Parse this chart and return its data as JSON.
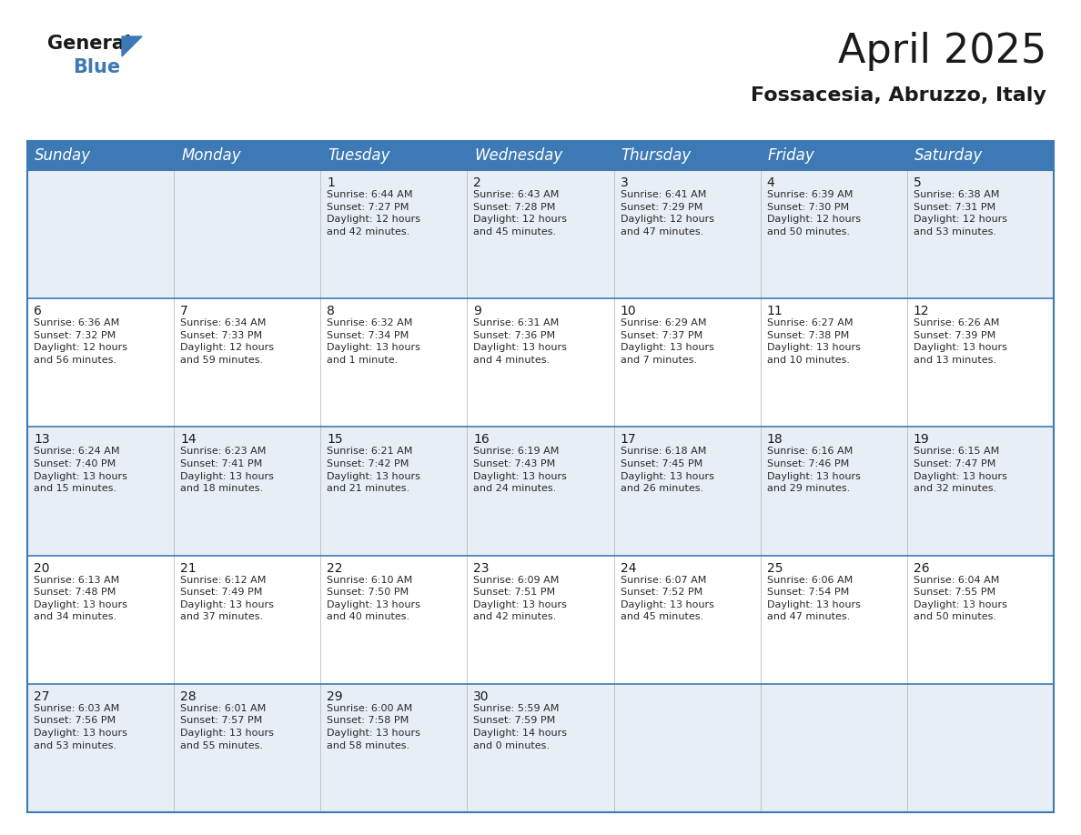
{
  "title": "April 2025",
  "subtitle": "Fossacesia, Abruzzo, Italy",
  "header_bg_color": "#3d7ab5",
  "header_text_color": "#ffffff",
  "days_of_week": [
    "Sunday",
    "Monday",
    "Tuesday",
    "Wednesday",
    "Thursday",
    "Friday",
    "Saturday"
  ],
  "cell_bg_light": "#e8eef5",
  "cell_bg_white": "#ffffff",
  "cell_border_color": "#3d7ab5",
  "calendar_data": [
    [
      {
        "day": "",
        "text": ""
      },
      {
        "day": "",
        "text": ""
      },
      {
        "day": "1",
        "text": "Sunrise: 6:44 AM\nSunset: 7:27 PM\nDaylight: 12 hours\nand 42 minutes."
      },
      {
        "day": "2",
        "text": "Sunrise: 6:43 AM\nSunset: 7:28 PM\nDaylight: 12 hours\nand 45 minutes."
      },
      {
        "day": "3",
        "text": "Sunrise: 6:41 AM\nSunset: 7:29 PM\nDaylight: 12 hours\nand 47 minutes."
      },
      {
        "day": "4",
        "text": "Sunrise: 6:39 AM\nSunset: 7:30 PM\nDaylight: 12 hours\nand 50 minutes."
      },
      {
        "day": "5",
        "text": "Sunrise: 6:38 AM\nSunset: 7:31 PM\nDaylight: 12 hours\nand 53 minutes."
      }
    ],
    [
      {
        "day": "6",
        "text": "Sunrise: 6:36 AM\nSunset: 7:32 PM\nDaylight: 12 hours\nand 56 minutes."
      },
      {
        "day": "7",
        "text": "Sunrise: 6:34 AM\nSunset: 7:33 PM\nDaylight: 12 hours\nand 59 minutes."
      },
      {
        "day": "8",
        "text": "Sunrise: 6:32 AM\nSunset: 7:34 PM\nDaylight: 13 hours\nand 1 minute."
      },
      {
        "day": "9",
        "text": "Sunrise: 6:31 AM\nSunset: 7:36 PM\nDaylight: 13 hours\nand 4 minutes."
      },
      {
        "day": "10",
        "text": "Sunrise: 6:29 AM\nSunset: 7:37 PM\nDaylight: 13 hours\nand 7 minutes."
      },
      {
        "day": "11",
        "text": "Sunrise: 6:27 AM\nSunset: 7:38 PM\nDaylight: 13 hours\nand 10 minutes."
      },
      {
        "day": "12",
        "text": "Sunrise: 6:26 AM\nSunset: 7:39 PM\nDaylight: 13 hours\nand 13 minutes."
      }
    ],
    [
      {
        "day": "13",
        "text": "Sunrise: 6:24 AM\nSunset: 7:40 PM\nDaylight: 13 hours\nand 15 minutes."
      },
      {
        "day": "14",
        "text": "Sunrise: 6:23 AM\nSunset: 7:41 PM\nDaylight: 13 hours\nand 18 minutes."
      },
      {
        "day": "15",
        "text": "Sunrise: 6:21 AM\nSunset: 7:42 PM\nDaylight: 13 hours\nand 21 minutes."
      },
      {
        "day": "16",
        "text": "Sunrise: 6:19 AM\nSunset: 7:43 PM\nDaylight: 13 hours\nand 24 minutes."
      },
      {
        "day": "17",
        "text": "Sunrise: 6:18 AM\nSunset: 7:45 PM\nDaylight: 13 hours\nand 26 minutes."
      },
      {
        "day": "18",
        "text": "Sunrise: 6:16 AM\nSunset: 7:46 PM\nDaylight: 13 hours\nand 29 minutes."
      },
      {
        "day": "19",
        "text": "Sunrise: 6:15 AM\nSunset: 7:47 PM\nDaylight: 13 hours\nand 32 minutes."
      }
    ],
    [
      {
        "day": "20",
        "text": "Sunrise: 6:13 AM\nSunset: 7:48 PM\nDaylight: 13 hours\nand 34 minutes."
      },
      {
        "day": "21",
        "text": "Sunrise: 6:12 AM\nSunset: 7:49 PM\nDaylight: 13 hours\nand 37 minutes."
      },
      {
        "day": "22",
        "text": "Sunrise: 6:10 AM\nSunset: 7:50 PM\nDaylight: 13 hours\nand 40 minutes."
      },
      {
        "day": "23",
        "text": "Sunrise: 6:09 AM\nSunset: 7:51 PM\nDaylight: 13 hours\nand 42 minutes."
      },
      {
        "day": "24",
        "text": "Sunrise: 6:07 AM\nSunset: 7:52 PM\nDaylight: 13 hours\nand 45 minutes."
      },
      {
        "day": "25",
        "text": "Sunrise: 6:06 AM\nSunset: 7:54 PM\nDaylight: 13 hours\nand 47 minutes."
      },
      {
        "day": "26",
        "text": "Sunrise: 6:04 AM\nSunset: 7:55 PM\nDaylight: 13 hours\nand 50 minutes."
      }
    ],
    [
      {
        "day": "27",
        "text": "Sunrise: 6:03 AM\nSunset: 7:56 PM\nDaylight: 13 hours\nand 53 minutes."
      },
      {
        "day": "28",
        "text": "Sunrise: 6:01 AM\nSunset: 7:57 PM\nDaylight: 13 hours\nand 55 minutes."
      },
      {
        "day": "29",
        "text": "Sunrise: 6:00 AM\nSunset: 7:58 PM\nDaylight: 13 hours\nand 58 minutes."
      },
      {
        "day": "30",
        "text": "Sunrise: 5:59 AM\nSunset: 7:59 PM\nDaylight: 14 hours\nand 0 minutes."
      },
      {
        "day": "",
        "text": ""
      },
      {
        "day": "",
        "text": ""
      },
      {
        "day": "",
        "text": ""
      }
    ]
  ],
  "logo_color_general": "#1a1a1a",
  "logo_color_blue": "#3d7ab5",
  "title_fontsize": 32,
  "subtitle_fontsize": 16,
  "header_fontsize": 12,
  "day_num_fontsize": 10,
  "cell_text_fontsize": 8,
  "background_color": "#ffffff"
}
